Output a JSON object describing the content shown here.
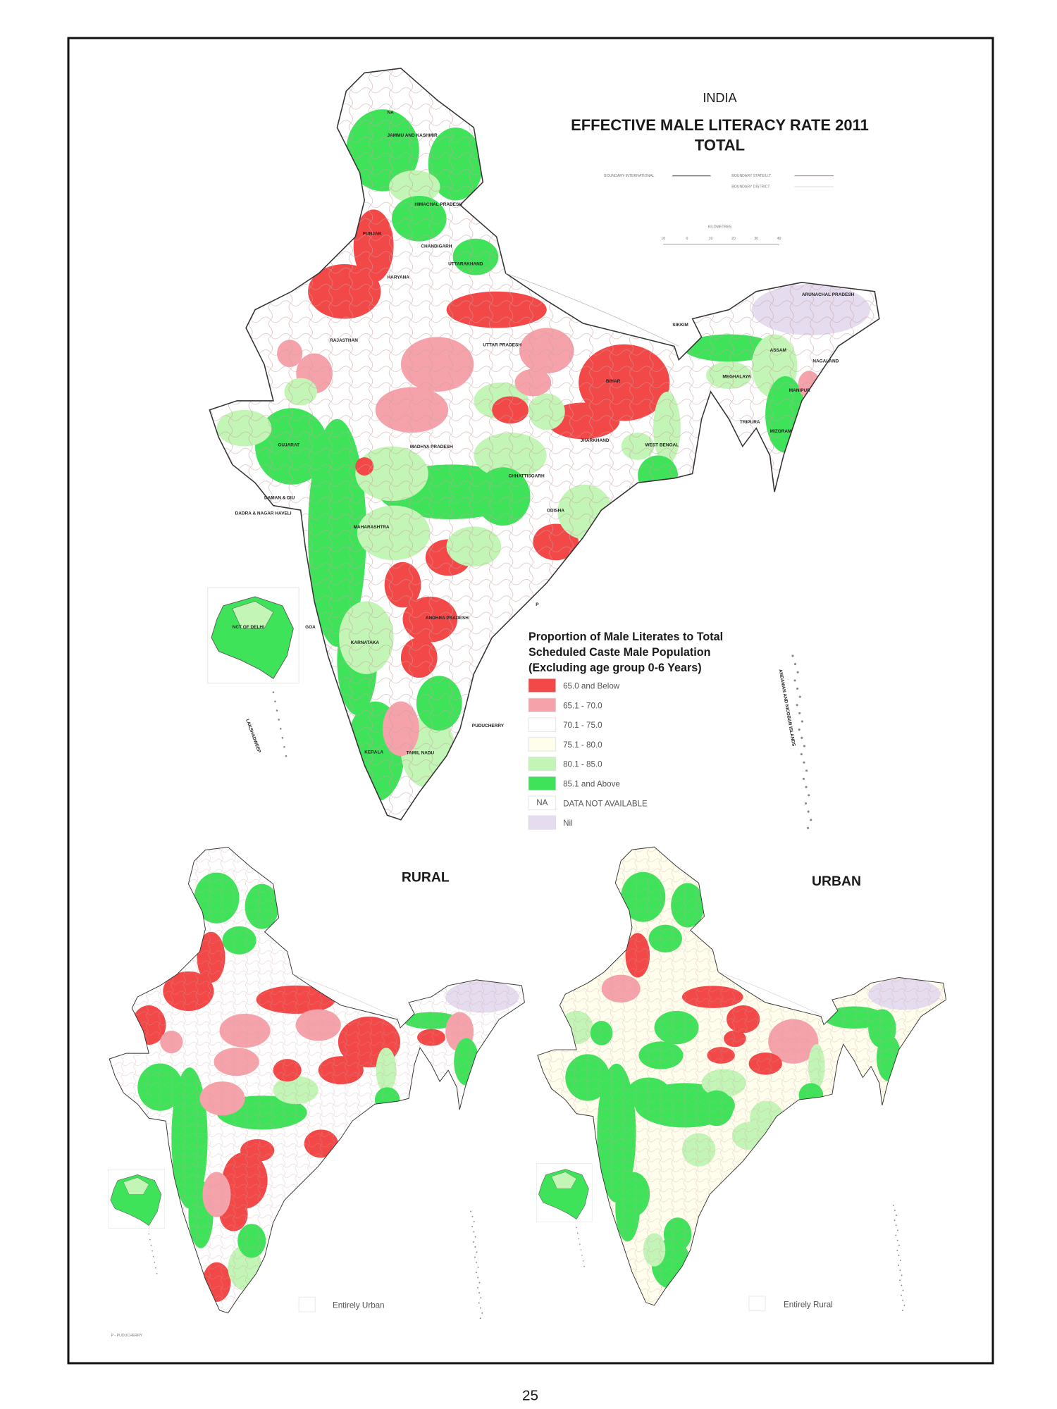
{
  "header": {
    "country": "INDIA",
    "title": "EFFECTIVE MALE LITERACY RATE 2011",
    "subtitle": "TOTAL",
    "boundary_international": "BOUNDARY INTERNATIONAL",
    "boundary_state": "BOUNDARY STATE/U.T",
    "boundary_district": "BOUNDARY DISTRICT",
    "scale_unit": "KILOMETRES",
    "scale_ticks": [
      "10",
      "0",
      "10",
      "20",
      "30",
      "40"
    ]
  },
  "legend": {
    "title_lines": [
      "Proportion of Male Literates to Total",
      "Scheduled Caste Male Population",
      "(Excluding age group 0-6 Years)"
    ],
    "items": [
      {
        "label": "65.0 and Below",
        "color": "#f24848"
      },
      {
        "label": "65.1 - 70.0",
        "color": "#f6a2ab"
      },
      {
        "label": "70.1 - 75.0",
        "color": "#ffffff"
      },
      {
        "label": "75.1 - 80.0",
        "color": "#fffdec"
      },
      {
        "label": "80.1 - 85.0",
        "color": "#c3f5b6"
      },
      {
        "label": "85.1 and Above",
        "color": "#3fe35a"
      },
      {
        "label": "DATA NOT AVAILABLE",
        "swatch_text": "NA",
        "color": "#ffffff"
      },
      {
        "label": "Nil",
        "color": "#e6dcef"
      }
    ]
  },
  "states": {
    "na": "NA",
    "jk": "JAMMU AND KASHMIR",
    "hp": "HIMACHAL PRADESH",
    "pb": "PUNJAB",
    "ch": "CHANDIGARH",
    "uk": "UTTARAKHAND",
    "hr": "HARYANA",
    "rj": "RAJASTHAN",
    "up": "UTTAR PRADESH",
    "sk": "SIKKIM",
    "ar": "ARUNACHAL PRADESH",
    "as": "ASSAM",
    "nl": "NAGALAND",
    "ml": "MEGHALAYA",
    "mn": "MANIPUR",
    "tr": "TRIPURA",
    "mz": "MIZORAM",
    "br": "BIHAR",
    "jh": "JHARKHAND",
    "wb": "WEST BENGAL",
    "gj": "GUJARAT",
    "mp": "MADHYA PRADESH",
    "cg": "CHHATTISGARH",
    "od": "ODISHA",
    "dd": "DAMAN & DIU",
    "dn": "DADRA & NAGAR HAVELI",
    "mh": "MAHARASHTRA",
    "dl": "NCT OF DELHI",
    "ga": "GOA",
    "ap": "ANDHRA PRADESH",
    "ka": "KARNATAKA",
    "py": "PUDUCHERRY",
    "kl": "KERALA",
    "tn": "TAMIL NADU",
    "ld": "LAKSHADWEEP",
    "an": "ANDAMAN AND NICOBAR ISLANDS",
    "p": "P"
  },
  "rural": {
    "title": "RURAL",
    "note": "Entirely Urban"
  },
  "urban": {
    "title": "URBAN",
    "note": "Entirely Rural"
  },
  "footer_left": "P - PUDUCHERRY",
  "page_number": "25"
}
